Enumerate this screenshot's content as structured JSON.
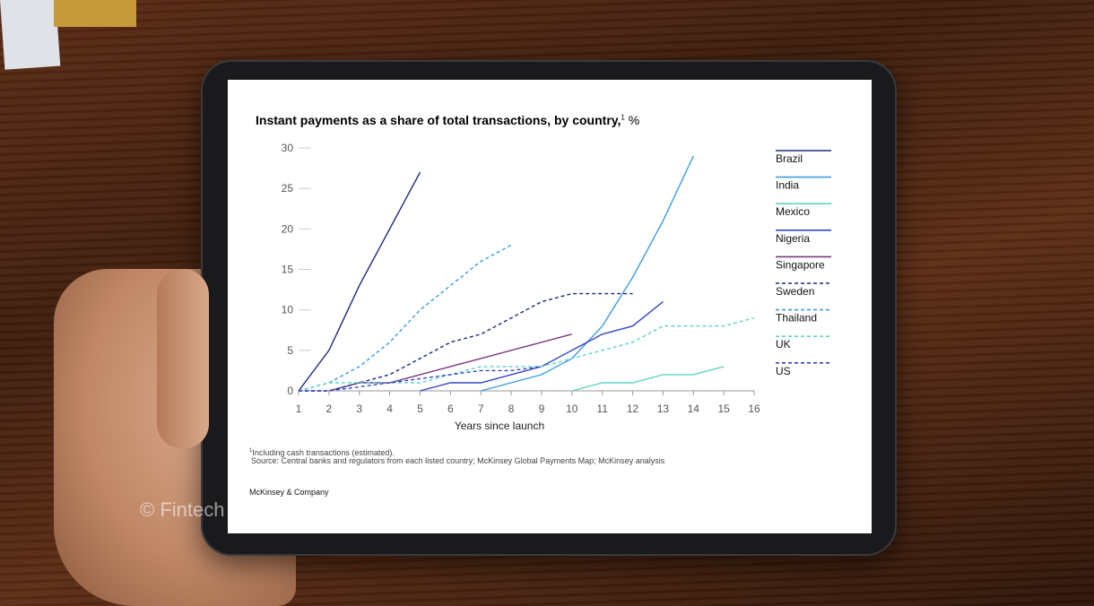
{
  "title": "Instant payments as a share of total transactions, by country,",
  "title_superscript": "1",
  "title_unit": "%",
  "footnote_marker": "1",
  "footnote_text": "Including cash transactions (estimated).",
  "source": "Source: Central banks and regulators from each listed country; McKinsey Global Payments Map; McKinsey analysis",
  "brand": "McKinsey & Company",
  "watermark": "© Fintech News Network",
  "chart_data": {
    "type": "line",
    "title": "Instant payments as a share of total transactions, by country, %",
    "xlabel": "Years since launch",
    "ylabel": "",
    "xlim": [
      1,
      16
    ],
    "ylim": [
      0,
      30
    ],
    "x_ticks": [
      1,
      2,
      3,
      4,
      5,
      6,
      7,
      8,
      9,
      10,
      11,
      12,
      13,
      14,
      15,
      16
    ],
    "y_ticks": [
      0,
      5,
      10,
      15,
      20,
      25,
      30
    ],
    "legend_position": "right",
    "series": [
      {
        "name": "Brazil",
        "color": "#1b2a7a",
        "dashed": false,
        "x": [
          1,
          2,
          3,
          4,
          5
        ],
        "values": [
          0,
          5,
          13,
          20,
          27
        ]
      },
      {
        "name": "India",
        "color": "#3d9be0",
        "dashed": false,
        "x": [
          7,
          8,
          9,
          10,
          11,
          12,
          13,
          14
        ],
        "values": [
          0,
          1,
          2,
          4,
          8,
          14,
          21,
          29
        ]
      },
      {
        "name": "Mexico",
        "color": "#5fd3c6",
        "dashed": false,
        "x": [
          10,
          11,
          12,
          13,
          14,
          15
        ],
        "values": [
          0,
          1,
          1,
          2,
          2,
          3
        ]
      },
      {
        "name": "Nigeria",
        "color": "#3546c6",
        "dashed": false,
        "x": [
          5,
          6,
          7,
          8,
          9,
          10,
          11,
          12,
          13
        ],
        "values": [
          0,
          1,
          1,
          2,
          3,
          5,
          7,
          8,
          11
        ]
      },
      {
        "name": "Singapore",
        "color": "#7a3a7e",
        "dashed": false,
        "x": [
          2,
          3,
          4,
          5,
          6,
          7,
          8,
          9,
          10
        ],
        "values": [
          0,
          1,
          1,
          2,
          3,
          4,
          5,
          6,
          7
        ]
      },
      {
        "name": "Sweden",
        "color": "#1b2a7a",
        "dashed": true,
        "x": [
          1,
          2,
          3,
          4,
          5,
          6,
          7,
          8,
          9,
          10,
          11,
          12
        ],
        "values": [
          0,
          0,
          1,
          2,
          4,
          6,
          7,
          9,
          11,
          12,
          12,
          12
        ]
      },
      {
        "name": "Thailand",
        "color": "#3d9be0",
        "dashed": true,
        "x": [
          1,
          2,
          3,
          4,
          5,
          6,
          7,
          8
        ],
        "values": [
          0,
          1,
          3,
          6,
          10,
          13,
          16,
          18
        ]
      },
      {
        "name": "UK",
        "color": "#5fd3c6",
        "dashed": true,
        "x": [
          1,
          2,
          3,
          4,
          5,
          6,
          7,
          8,
          9,
          10,
          11,
          12,
          13,
          14,
          15,
          16
        ],
        "values": [
          0,
          1,
          1,
          1,
          1,
          2,
          3,
          3,
          3,
          4,
          5,
          6,
          8,
          8,
          8,
          9
        ]
      },
      {
        "name": "US",
        "color": "#3546c6",
        "dashed": true,
        "x": [
          1,
          2,
          3,
          4,
          5,
          6,
          7,
          8,
          9
        ],
        "values": [
          0,
          0,
          0.5,
          1,
          1.5,
          2,
          2.5,
          2.5,
          3
        ]
      }
    ]
  }
}
